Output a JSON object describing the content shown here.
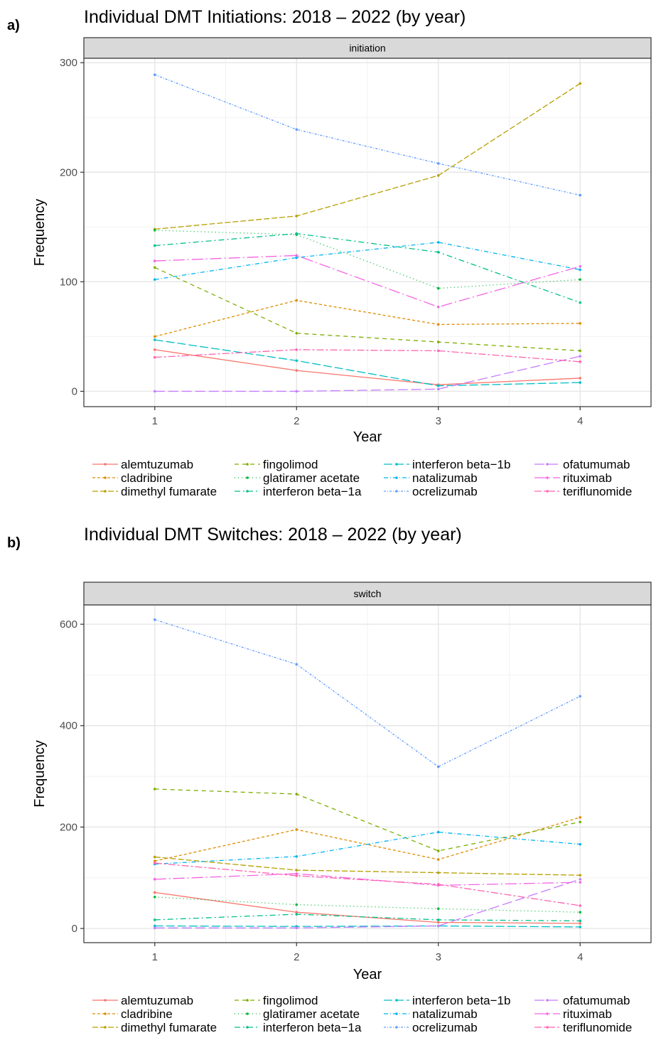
{
  "panels": [
    {
      "letter": "a)",
      "title": "Individual DMT Initiations: 2018 – 2022 (by year)",
      "strip": "initiation",
      "chart_data": {
        "type": "line",
        "xlabel": "Year",
        "ylabel": "Frequency",
        "x": [
          1,
          2,
          3,
          4
        ],
        "xlim": [
          0.5,
          4.5
        ],
        "ylim": [
          -14,
          304
        ],
        "xticks": [
          1,
          2,
          3,
          4
        ],
        "yticks": [
          0,
          100,
          200,
          300
        ],
        "grid": true,
        "legend_position": "bottom",
        "series": [
          {
            "name": "alemtuzumab",
            "values": [
              38,
              19,
              6,
              12
            ]
          },
          {
            "name": "cladribine",
            "values": [
              50,
              83,
              61,
              62
            ]
          },
          {
            "name": "dimethyl fumarate",
            "values": [
              148,
              160,
              197,
              281
            ]
          },
          {
            "name": "fingolimod",
            "values": [
              113,
              53,
              45,
              37
            ]
          },
          {
            "name": "glatiramer acetate",
            "values": [
              147,
              143,
              94,
              102
            ]
          },
          {
            "name": "interferon beta−1a",
            "values": [
              133,
              144,
              127,
              81
            ]
          },
          {
            "name": "interferon beta−1b",
            "values": [
              47,
              28,
              5,
              8
            ]
          },
          {
            "name": "natalizumab",
            "values": [
              102,
              122,
              136,
              111
            ]
          },
          {
            "name": "ocrelizumab",
            "values": [
              289,
              239,
              208,
              179
            ]
          },
          {
            "name": "ofatumumab",
            "values": [
              0,
              0,
              2,
              32
            ]
          },
          {
            "name": "rituximab",
            "values": [
              119,
              124,
              77,
              114
            ]
          },
          {
            "name": "teriflunomide",
            "values": [
              31,
              38,
              37,
              27
            ]
          }
        ]
      }
    },
    {
      "letter": "b)",
      "title": "Individual DMT Switches: 2018 – 2022 (by year)",
      "strip": "switch",
      "chart_data": {
        "type": "line",
        "xlabel": "Year",
        "ylabel": "Frequency",
        "x": [
          1,
          2,
          3,
          4
        ],
        "xlim": [
          0.5,
          4.5
        ],
        "ylim": [
          -28,
          638
        ],
        "xticks": [
          1,
          2,
          3,
          4
        ],
        "yticks": [
          0,
          200,
          400,
          600
        ],
        "grid": true,
        "legend_position": "bottom",
        "series": [
          {
            "name": "alemtuzumab",
            "values": [
              71,
              32,
              12,
              10
            ]
          },
          {
            "name": "cladribine",
            "values": [
              133,
              195,
              136,
              219
            ]
          },
          {
            "name": "dimethyl fumarate",
            "values": [
              141,
              115,
              110,
              105
            ]
          },
          {
            "name": "fingolimod",
            "values": [
              275,
              265,
              153,
              210
            ]
          },
          {
            "name": "glatiramer acetate",
            "values": [
              62,
              47,
              39,
              32
            ]
          },
          {
            "name": "interferon beta−1a",
            "values": [
              17,
              28,
              17,
              15
            ]
          },
          {
            "name": "interferon beta−1b",
            "values": [
              5,
              4,
              5,
              3
            ]
          },
          {
            "name": "natalizumab",
            "values": [
              127,
              142,
              190,
              166
            ]
          },
          {
            "name": "ocrelizumab",
            "values": [
              609,
              521,
              319,
              458
            ]
          },
          {
            "name": "ofatumumab",
            "values": [
              1,
              1,
              5,
              97
            ]
          },
          {
            "name": "rituximab",
            "values": [
              97,
              108,
              85,
              91
            ]
          },
          {
            "name": "teriflunomide",
            "values": [
              129,
              104,
              87,
              45
            ]
          }
        ]
      }
    }
  ],
  "series_colors": [
    "#F8766D",
    "#DE8C00",
    "#B79F00",
    "#7CAE00",
    "#00BA38",
    "#00C08B",
    "#00BFC4",
    "#00B4F0",
    "#619CFF",
    "#C77CFF",
    "#F564E3",
    "#FF64B0"
  ],
  "series_dash": [
    "",
    "4 3",
    "8 3",
    "6 5",
    "1 4",
    "8 4 2 4",
    "12 4",
    "6 3 1 3",
    "3 2 1 2",
    "14 5",
    "16 4 2 4",
    "10 3 3 3"
  ]
}
